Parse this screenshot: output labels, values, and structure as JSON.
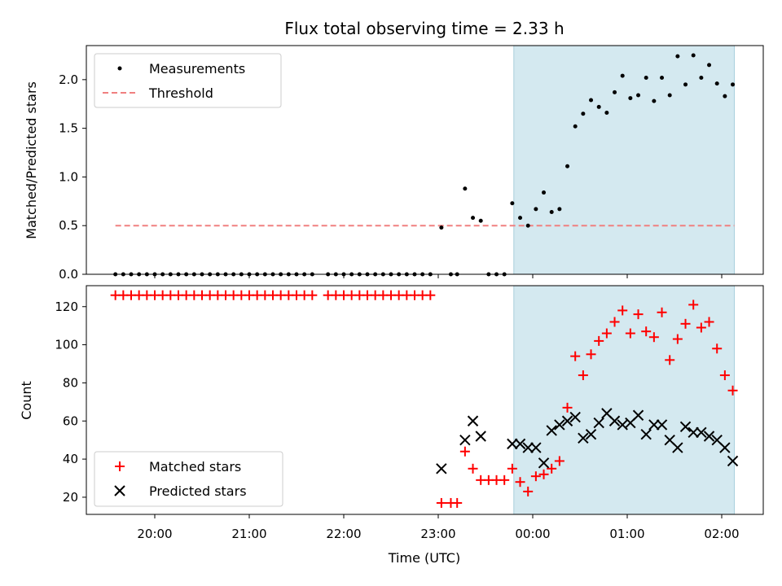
{
  "chart_data": [
    {
      "type": "scatter",
      "title": "Flux total observing time = 2.33 h",
      "ylabel": "Matched/Predicted stars",
      "xlabel": "",
      "ylim": [
        0,
        2.35
      ],
      "y_ticks": [
        "0.0",
        "0.5",
        "1.0",
        "1.5",
        "2.0"
      ],
      "x_tick_labels_shown": false,
      "shaded_region": {
        "x_start": "23:48",
        "x_end": "02:08",
        "color": "#d4e9f0"
      },
      "legend": {
        "placement": "top-left",
        "entries": [
          "Measurements",
          "Threshold"
        ]
      },
      "series": [
        {
          "name": "Measurements",
          "marker": "dot",
          "color": "#000000",
          "x": [
            "19:35",
            "19:40",
            "19:45",
            "19:50",
            "19:55",
            "20:00",
            "20:05",
            "20:10",
            "20:15",
            "20:20",
            "20:25",
            "20:30",
            "20:35",
            "20:40",
            "20:45",
            "20:50",
            "20:55",
            "21:00",
            "21:05",
            "21:10",
            "21:15",
            "21:20",
            "21:25",
            "21:30",
            "21:35",
            "21:40",
            "21:50",
            "21:55",
            "22:00",
            "22:05",
            "22:10",
            "22:15",
            "22:20",
            "22:25",
            "22:30",
            "22:35",
            "22:40",
            "22:45",
            "22:50",
            "22:55",
            "23:02",
            "23:08",
            "23:12",
            "23:17",
            "23:22",
            "23:27",
            "23:32",
            "23:37",
            "23:42",
            "23:47",
            "23:52",
            "23:57",
            "24:02",
            "24:07",
            "24:12",
            "24:17",
            "24:22",
            "24:27",
            "24:32",
            "24:37",
            "24:42",
            "24:47",
            "24:52",
            "24:57",
            "25:02",
            "25:07",
            "25:12",
            "25:17",
            "25:22",
            "25:27",
            "25:32",
            "25:37",
            "25:42",
            "25:47",
            "25:52",
            "25:57",
            "26:02",
            "26:07"
          ],
          "y": [
            0,
            0,
            0,
            0,
            0,
            0,
            0,
            0,
            0,
            0,
            0,
            0,
            0,
            0,
            0,
            0,
            0,
            0,
            0,
            0,
            0,
            0,
            0,
            0,
            0,
            0,
            0,
            0,
            0,
            0,
            0,
            0,
            0,
            0,
            0,
            0,
            0,
            0,
            0,
            0,
            0.48,
            0,
            0,
            0.88,
            0.58,
            0.55,
            0,
            0,
            0,
            0.73,
            0.58,
            0.5,
            0.67,
            0.84,
            0.64,
            0.67,
            1.11,
            1.52,
            1.65,
            1.79,
            1.72,
            1.66,
            1.87,
            2.04,
            1.81,
            1.84,
            2.02,
            1.78,
            2.02,
            1.84,
            2.24,
            1.95,
            2.25,
            2.02,
            2.15,
            1.96,
            1.83,
            1.95
          ]
        },
        {
          "name": "Threshold",
          "style": "dashed",
          "color": "#f08080",
          "x": [
            "19:35",
            "26:08"
          ],
          "y": [
            0.5,
            0.5
          ]
        }
      ]
    },
    {
      "type": "scatter",
      "title": "",
      "ylabel": "Count",
      "xlabel": "Time (UTC)",
      "ylim": [
        11,
        131
      ],
      "y_ticks": [
        "20",
        "40",
        "60",
        "80",
        "100",
        "120"
      ],
      "x_ticks": [
        "20:00",
        "21:00",
        "22:00",
        "23:00",
        "00:00",
        "01:00",
        "02:00"
      ],
      "shaded_region": {
        "x_start": "23:48",
        "x_end": "02:08",
        "color": "#d4e9f0"
      },
      "legend": {
        "placement": "bottom-left",
        "entries": [
          "Matched stars",
          "Predicted stars"
        ]
      },
      "series": [
        {
          "name": "Matched stars",
          "marker": "plus",
          "color": "#ff0000",
          "x": [
            "19:35",
            "19:40",
            "19:45",
            "19:50",
            "19:55",
            "20:00",
            "20:05",
            "20:10",
            "20:15",
            "20:20",
            "20:25",
            "20:30",
            "20:35",
            "20:40",
            "20:45",
            "20:50",
            "20:55",
            "21:00",
            "21:05",
            "21:10",
            "21:15",
            "21:20",
            "21:25",
            "21:30",
            "21:35",
            "21:40",
            "21:50",
            "21:55",
            "22:00",
            "22:05",
            "22:10",
            "22:15",
            "22:20",
            "22:25",
            "22:30",
            "22:35",
            "22:40",
            "22:45",
            "22:50",
            "22:55",
            "23:02",
            "23:08",
            "23:12",
            "23:17",
            "23:22",
            "23:27",
            "23:32",
            "23:37",
            "23:42",
            "23:47",
            "23:52",
            "23:57",
            "24:02",
            "24:07",
            "24:12",
            "24:17",
            "24:22",
            "24:27",
            "24:32",
            "24:37",
            "24:42",
            "24:47",
            "24:52",
            "24:57",
            "25:02",
            "25:07",
            "25:12",
            "25:17",
            "25:22",
            "25:27",
            "25:32",
            "25:37",
            "25:42",
            "25:47",
            "25:52",
            "25:57",
            "26:02",
            "26:07"
          ],
          "y": [
            126,
            126,
            126,
            126,
            126,
            126,
            126,
            126,
            126,
            126,
            126,
            126,
            126,
            126,
            126,
            126,
            126,
            126,
            126,
            126,
            126,
            126,
            126,
            126,
            126,
            126,
            126,
            126,
            126,
            126,
            126,
            126,
            126,
            126,
            126,
            126,
            126,
            126,
            126,
            126,
            17,
            17,
            17,
            44,
            35,
            29,
            29,
            29,
            29,
            35,
            28,
            23,
            31,
            32,
            35,
            39,
            67,
            94,
            84,
            95,
            102,
            106,
            112,
            118,
            106,
            116,
            107,
            104,
            117,
            92,
            103,
            111,
            121,
            109,
            112,
            98,
            84,
            76
          ]
        },
        {
          "name": "Predicted stars",
          "marker": "x",
          "color": "#000000",
          "x": [
            "23:02",
            "23:17",
            "23:22",
            "23:27",
            "23:47",
            "23:52",
            "23:57",
            "24:02",
            "24:07",
            "24:12",
            "24:17",
            "24:22",
            "24:27",
            "24:32",
            "24:37",
            "24:42",
            "24:47",
            "24:52",
            "24:57",
            "25:02",
            "25:07",
            "25:12",
            "25:17",
            "25:22",
            "25:27",
            "25:32",
            "25:37",
            "25:42",
            "25:47",
            "25:52",
            "25:57",
            "26:02",
            "26:07"
          ],
          "y": [
            35,
            50,
            60,
            52,
            48,
            48,
            46,
            46,
            38,
            55,
            58,
            60,
            62,
            51,
            53,
            59,
            64,
            60,
            58,
            59,
            63,
            53,
            58,
            58,
            50,
            46,
            57,
            54,
            54,
            52,
            50,
            46,
            39
          ]
        }
      ]
    }
  ]
}
